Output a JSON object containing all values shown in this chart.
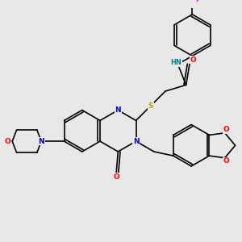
{
  "background_color": "#e8e8e8",
  "atom_colors": {
    "N": "#0000cc",
    "O": "#ff0000",
    "S": "#aaaa00",
    "F": "#ff00ff",
    "H": "#008080",
    "C": "#000000"
  },
  "bond_color": "#000000",
  "figsize": [
    3.0,
    3.0
  ],
  "dpi": 100
}
